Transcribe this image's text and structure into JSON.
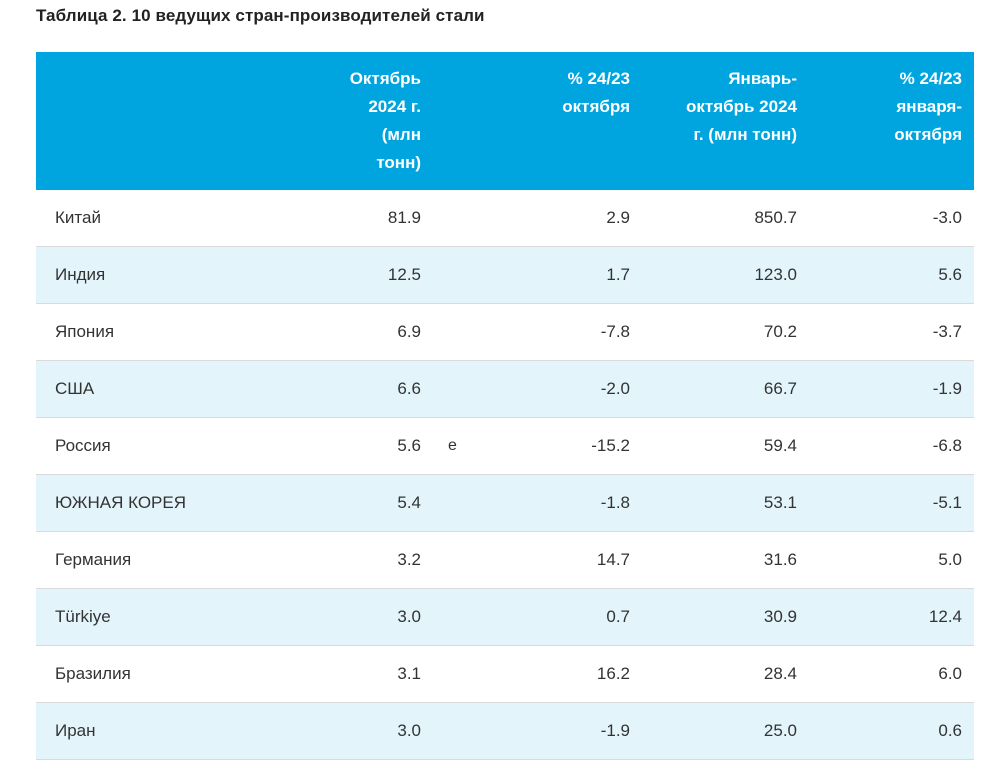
{
  "title": "Таблица 2. 10 ведущих стран-производителей стали",
  "table": {
    "columns": [
      {
        "id": "country",
        "label": ""
      },
      {
        "id": "oct_2024",
        "label": "Октябрь\n2024 г.\n(млн\nтонн)"
      },
      {
        "id": "pct_oct",
        "label": "% 24/23\nоктября"
      },
      {
        "id": "jan_oct_2024",
        "label": "Январь-\nоктябрь 2024\nг. (млн тонн)"
      },
      {
        "id": "pct_jan_oct",
        "label": "% 24/23\nянваря-\nоктября"
      }
    ],
    "rows": [
      {
        "country": "Китай",
        "oct_2024": "81.9",
        "note": "",
        "pct_oct": "2.9",
        "jan_oct_2024": "850.7",
        "pct_jan_oct": "-3.0"
      },
      {
        "country": "Индия",
        "oct_2024": "12.5",
        "note": "",
        "pct_oct": "1.7",
        "jan_oct_2024": "123.0",
        "pct_jan_oct": "5.6"
      },
      {
        "country": "Япония",
        "oct_2024": "6.9",
        "note": "",
        "pct_oct": "-7.8",
        "jan_oct_2024": "70.2",
        "pct_jan_oct": "-3.7"
      },
      {
        "country": "США",
        "oct_2024": "6.6",
        "note": "",
        "pct_oct": "-2.0",
        "jan_oct_2024": "66.7",
        "pct_jan_oct": "-1.9"
      },
      {
        "country": "Россия",
        "oct_2024": "5.6",
        "note": "e",
        "pct_oct": "-15.2",
        "jan_oct_2024": "59.4",
        "pct_jan_oct": "-6.8"
      },
      {
        "country": "ЮЖНАЯ КОРЕЯ",
        "oct_2024": "5.4",
        "note": "",
        "pct_oct": "-1.8",
        "jan_oct_2024": "53.1",
        "pct_jan_oct": "-5.1"
      },
      {
        "country": "Германия",
        "oct_2024": "3.2",
        "note": "",
        "pct_oct": "14.7",
        "jan_oct_2024": "31.6",
        "pct_jan_oct": "5.0"
      },
      {
        "country": "Türkiye",
        "oct_2024": "3.0",
        "note": "",
        "pct_oct": "0.7",
        "jan_oct_2024": "30.9",
        "pct_jan_oct": "12.4"
      },
      {
        "country": "Бразилия",
        "oct_2024": "3.1",
        "note": "",
        "pct_oct": "16.2",
        "jan_oct_2024": "28.4",
        "pct_jan_oct": "6.0"
      },
      {
        "country": "Иран",
        "oct_2024": "3.0",
        "note": "",
        "pct_oct": "-1.9",
        "jan_oct_2024": "25.0",
        "pct_jan_oct": "0.6"
      }
    ]
  },
  "colors": {
    "header_bg": "#00A5E0",
    "header_text": "#FFFFFF",
    "alt_row_bg": "#E3F4FB",
    "border": "#DADADA",
    "body_text": "#333333",
    "title_text": "#222222"
  }
}
